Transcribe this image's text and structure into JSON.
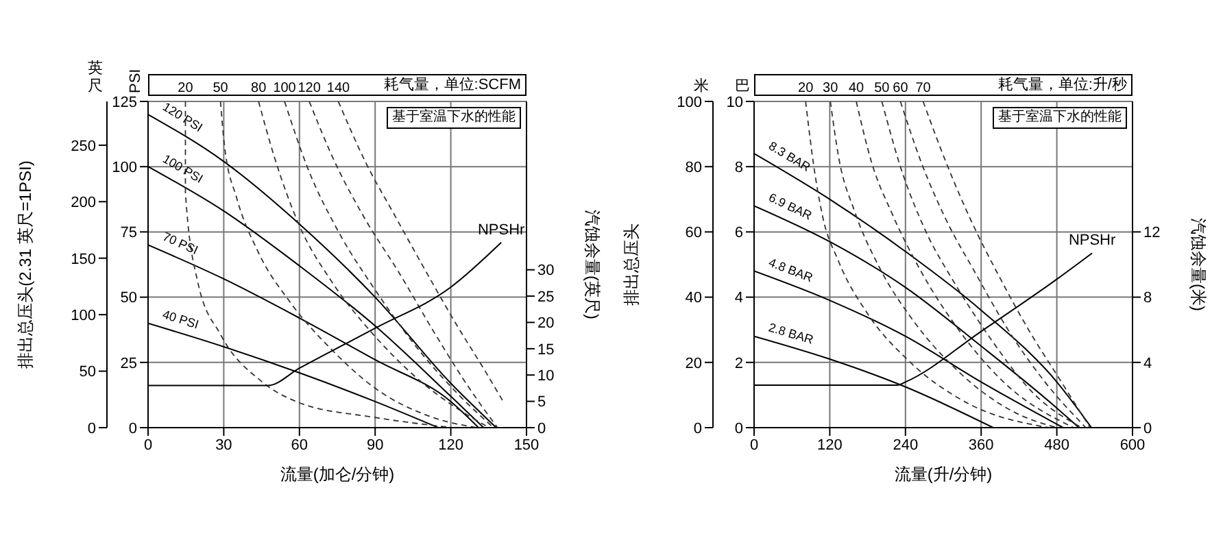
{
  "chart_data": [
    {
      "type": "line",
      "xlabel": "流量(加仑/分钟)",
      "ylabel": "PSI",
      "y2label": "排出总压头(2.31 英尺=1PSI)",
      "y3label": "汽蚀余量(英尺)",
      "annotations": [
        "英尺",
        "耗气量，单位:SCFM",
        "基于室温下水的性能"
      ],
      "xlim": [
        0,
        150
      ],
      "xticks": [
        0,
        30,
        60,
        90,
        120,
        150
      ],
      "ylim": [
        0,
        125
      ],
      "yticks": [
        0,
        25,
        50,
        75,
        100,
        125
      ],
      "y2lim": [
        0,
        288.75
      ],
      "y2ticks": [
        0,
        50,
        100,
        150,
        200,
        250
      ],
      "y3lim": [
        0,
        62
      ],
      "y3ticks": [
        0,
        5,
        10,
        15,
        20,
        25,
        30
      ],
      "grid": true,
      "marker": "none",
      "line_style": "solid",
      "series": [
        {
          "name": "120 PSI",
          "color": "#000000",
          "x": [
            0,
            30,
            60,
            90,
            120,
            138
          ],
          "values": [
            120,
            102,
            78,
            50,
            17,
            0
          ]
        },
        {
          "name": "100 PSI",
          "color": "#000000",
          "x": [
            0,
            30,
            60,
            90,
            120,
            133
          ],
          "values": [
            100,
            83,
            62,
            39,
            12,
            0
          ]
        },
        {
          "name": "70 PSI",
          "color": "#000000",
          "x": [
            0,
            30,
            60,
            90,
            120,
            131
          ],
          "values": [
            70,
            57,
            42,
            26,
            10,
            0
          ]
        },
        {
          "name": "40 PSI",
          "color": "#000000",
          "x": [
            0,
            30,
            60,
            90,
            115
          ],
          "values": [
            40,
            31,
            21,
            10,
            0
          ]
        },
        {
          "name": "20",
          "color": "#333333",
          "line_style": "dashed",
          "x": [
            14.8,
            14.8,
            19.7,
            28.7,
            45,
            59.8,
            89.3,
            120.5
          ],
          "values": [
            125,
            89.9,
            55.8,
            35.7,
            17.7,
            9.6,
            4,
            0
          ]
        },
        {
          "name": "50",
          "color": "#333333",
          "line_style": "dashed",
          "x": [
            28.7,
            30.3,
            35.2,
            43.4,
            56.6,
            73,
            89.3,
            113.9,
            130.3
          ],
          "values": [
            125,
            107.9,
            87.8,
            67.8,
            47.7,
            29.7,
            15.6,
            3.6,
            0
          ]
        },
        {
          "name": "80",
          "color": "#333333",
          "line_style": "dashed",
          "x": [
            43.8,
            50,
            59.8,
            72.9,
            89.3,
            105.7,
            122.1,
            135.2
          ],
          "values": [
            125,
            103.9,
            77.8,
            55.8,
            35.7,
            19.7,
            7.6,
            0
          ]
        },
        {
          "name": "100",
          "color": "#333333",
          "line_style": "dashed",
          "x": [
            54.1,
            63.1,
            76.2,
            89.3,
            105.7,
            122.1,
            136.9
          ],
          "values": [
            125,
            99.9,
            73.8,
            53.8,
            31.7,
            13.6,
            0
          ]
        },
        {
          "name": "120",
          "color": "#333333",
          "line_style": "dashed",
          "x": [
            63.9,
            73,
            86.1,
            99.2,
            113.9,
            127,
            138.5
          ],
          "values": [
            125,
            103.9,
            79.8,
            59.8,
            35.7,
            15.6,
            0
          ]
        },
        {
          "name": "140",
          "color": "#333333",
          "line_style": "dashed",
          "x": [
            75.4,
            86.1,
            97.5,
            109,
            122.1,
            133.6,
            141
          ],
          "values": [
            125,
            101.9,
            81.8,
            61.8,
            39.7,
            21.7,
            9.6
          ]
        },
        {
          "name": "NPSHr",
          "color": "#000000",
          "axis": "y3",
          "x": [
            0,
            47.5,
            60,
            90,
            120,
            140
          ],
          "values": [
            8,
            8,
            11.3,
            18.9,
            26.7,
            35.2
          ]
        }
      ]
    },
    {
      "type": "line",
      "xlabel": "流量(升/分钟)",
      "ylabel": "巴",
      "y2label": "排出总压头",
      "y3label": "汽蚀余量(米)",
      "annotations": [
        "米",
        "耗气量，单位:升/秒",
        "基于室温下水的性能"
      ],
      "xlim": [
        0,
        600
      ],
      "xticks": [
        0,
        120,
        240,
        360,
        480,
        600
      ],
      "ylim": [
        0,
        10
      ],
      "yticks": [
        0,
        2,
        4,
        6,
        8,
        10
      ],
      "y2lim": [
        0,
        100
      ],
      "y2ticks": [
        0,
        20,
        40,
        60,
        80,
        100
      ],
      "y3lim": [
        0,
        20
      ],
      "y3ticks": [
        0,
        4,
        8,
        12
      ],
      "grid": true,
      "marker": "none",
      "line_style": "solid",
      "series": [
        {
          "name": "8.3 BAR",
          "color": "#000000",
          "x": [
            0,
            120,
            240,
            360,
            480,
            535
          ],
          "values": [
            8.4,
            7.0,
            5.4,
            3.6,
            1.4,
            0
          ]
        },
        {
          "name": "6.9 BAR",
          "color": "#000000",
          "x": [
            0,
            120,
            240,
            360,
            480,
            515
          ],
          "values": [
            6.8,
            5.7,
            4.3,
            2.5,
            0.6,
            0
          ]
        },
        {
          "name": "4.8 BAR",
          "color": "#000000",
          "x": [
            0,
            120,
            240,
            360,
            490
          ],
          "values": [
            4.8,
            3.9,
            2.8,
            1.4,
            0
          ]
        },
        {
          "name": "2.8 BAR",
          "color": "#000000",
          "x": [
            0,
            120,
            240,
            379
          ],
          "values": [
            2.8,
            2.1,
            1.25,
            0
          ]
        },
        {
          "name": "20",
          "color": "#333333",
          "line_style": "dashed",
          "x": [
            81.7,
            94.8,
            107.8,
            133.9,
            179.7,
            245.1,
            336.6,
            467.3
          ],
          "values": [
            10,
            8,
            6.55,
            5.1,
            3.5,
            2.05,
            0.77,
            0
          ]
        },
        {
          "name": "30",
          "color": "#333333",
          "line_style": "dashed",
          "x": [
            120.9,
            134,
            160,
            199,
            251.6,
            323.5,
            415,
            480.4
          ],
          "values": [
            10,
            8.3,
            6.6,
            4.9,
            3.3,
            1.73,
            0.45,
            0
          ]
        },
        {
          "name": "40",
          "color": "#333333",
          "line_style": "dashed",
          "x": [
            162,
            186,
            219,
            265,
            323.5,
            395,
            506.5
          ],
          "values": [
            10,
            8.15,
            6.55,
            4.78,
            3.02,
            1.41,
            0
          ]
        },
        {
          "name": "50",
          "color": "#333333",
          "line_style": "dashed",
          "x": [
            202.6,
            232,
            271,
            317,
            376,
            441,
            519.6
          ],
          "values": [
            10,
            8,
            6.07,
            4.46,
            2.7,
            1.09,
            0
          ]
        },
        {
          "name": "60",
          "color": "#333333",
          "line_style": "dashed",
          "x": [
            232,
            264.7,
            304,
            349.7,
            402,
            460.8,
            526
          ],
          "values": [
            10,
            8.15,
            6.39,
            4.78,
            3.02,
            1.41,
            0
          ]
        },
        {
          "name": "70",
          "color": "#333333",
          "line_style": "dashed",
          "x": [
            268,
            304,
            343,
            389,
            434.6,
            486.9,
            532.7
          ],
          "values": [
            10,
            8.15,
            6.39,
            4.62,
            3.02,
            1.41,
            0
          ]
        },
        {
          "name": "NPSHr",
          "color": "#000000",
          "axis": "y3",
          "x": [
            0,
            227,
            240,
            360,
            480,
            536
          ],
          "values": [
            2.6,
            2.6,
            2.8,
            5.9,
            9.1,
            10.7
          ]
        }
      ]
    }
  ]
}
